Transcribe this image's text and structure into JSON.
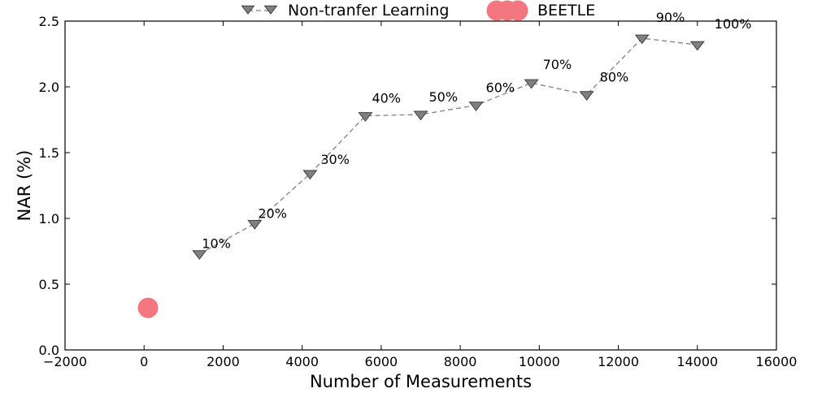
{
  "chart_data": {
    "type": "scatter",
    "xlabel": "Number of Measurements",
    "ylabel": "NAR (%)",
    "xlim": [
      -2000,
      16000
    ],
    "ylim": [
      0,
      2.5
    ],
    "xticks": [
      -2000,
      0,
      2000,
      4000,
      6000,
      8000,
      10000,
      12000,
      14000,
      16000
    ],
    "xtick_labels": [
      "−2000",
      "0",
      "2000",
      "4000",
      "6000",
      "8000",
      "10000",
      "12000",
      "14000",
      "16000"
    ],
    "yticks": [
      0,
      0.5,
      1.0,
      1.5,
      2.0,
      2.5
    ],
    "ytick_labels": [
      "0.0",
      "0.5",
      "1.0",
      "1.5",
      "2.0",
      "2.5"
    ],
    "grid": false,
    "legend_position": "top",
    "series": [
      {
        "name": "Non-tranfer Learning",
        "marker": "triangle-down",
        "line": "dashed",
        "color": "#808080",
        "points": [
          {
            "x": 1400,
            "y": 0.73,
            "label": "10%"
          },
          {
            "x": 2800,
            "y": 0.96,
            "label": "20%"
          },
          {
            "x": 4200,
            "y": 1.34,
            "label": "30%"
          },
          {
            "x": 5600,
            "y": 1.78,
            "label": "40%"
          },
          {
            "x": 7000,
            "y": 1.79,
            "label": "50%"
          },
          {
            "x": 8400,
            "y": 1.86,
            "label": "60%"
          },
          {
            "x": 9800,
            "y": 2.03,
            "label": "70%"
          },
          {
            "x": 11200,
            "y": 1.94,
            "label": "80%"
          },
          {
            "x": 12600,
            "y": 2.37,
            "label": "90%"
          },
          {
            "x": 14000,
            "y": 2.32,
            "label": "100%"
          }
        ]
      },
      {
        "name": "BEETLE",
        "marker": "circle",
        "line": "none",
        "color": "#F4777F",
        "points": [
          {
            "x": 100,
            "y": 0.32
          }
        ]
      }
    ]
  }
}
